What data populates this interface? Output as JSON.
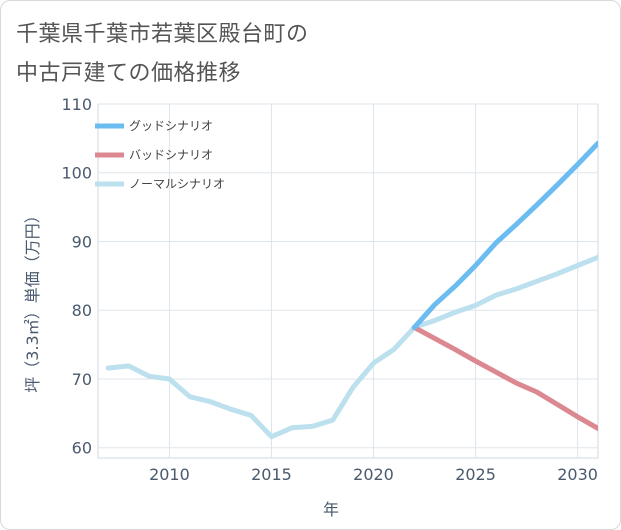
{
  "title": {
    "line1": "千葉県千葉市若葉区殿台町の",
    "line2": "中古戸建ての価格推移"
  },
  "chart_data": {
    "type": "line",
    "title": "千葉県千葉市若葉区殿台町の中古戸建ての価格推移",
    "xlabel": "年",
    "ylabel": "坪（3.3㎡）単価（万円）",
    "xlim": [
      2006.5,
      2031
    ],
    "ylim": [
      58.5,
      110
    ],
    "xticks": [
      2010,
      2015,
      2020,
      2025,
      2030
    ],
    "yticks": [
      60,
      70,
      80,
      90,
      100,
      110
    ],
    "grid": true,
    "legend_position": "top-left",
    "series": [
      {
        "name": "グッドシナリオ",
        "color": "#6bbcf0",
        "x": [
          2022,
          2023,
          2024,
          2025,
          2026,
          2027,
          2028,
          2029,
          2030,
          2031
        ],
        "values": [
          77.5,
          80.8,
          83.5,
          86.5,
          89.8,
          92.5,
          95.3,
          98.2,
          101.2,
          104.3
        ]
      },
      {
        "name": "バッドシナリオ",
        "color": "#db8891",
        "x": [
          2022,
          2023,
          2024,
          2025,
          2026,
          2027,
          2028,
          2029,
          2030,
          2031
        ],
        "values": [
          77.5,
          75.9,
          74.3,
          72.6,
          71.0,
          69.4,
          68.1,
          66.3,
          64.5,
          62.8
        ]
      },
      {
        "name": "ノーマルシナリオ",
        "color": "#bde0ef",
        "x": [
          2007,
          2008,
          2009,
          2010,
          2011,
          2012,
          2013,
          2014,
          2015,
          2016,
          2017,
          2018,
          2019,
          2020,
          2021,
          2022,
          2023,
          2024,
          2025,
          2026,
          2027,
          2028,
          2029,
          2030,
          2031
        ],
        "values": [
          71.6,
          71.9,
          70.4,
          70.0,
          67.4,
          66.7,
          65.6,
          64.7,
          61.6,
          62.9,
          63.1,
          64.0,
          68.8,
          72.3,
          74.3,
          77.5,
          78.5,
          79.7,
          80.7,
          82.2,
          83.1,
          84.2,
          85.3,
          86.5,
          87.7
        ]
      }
    ]
  }
}
